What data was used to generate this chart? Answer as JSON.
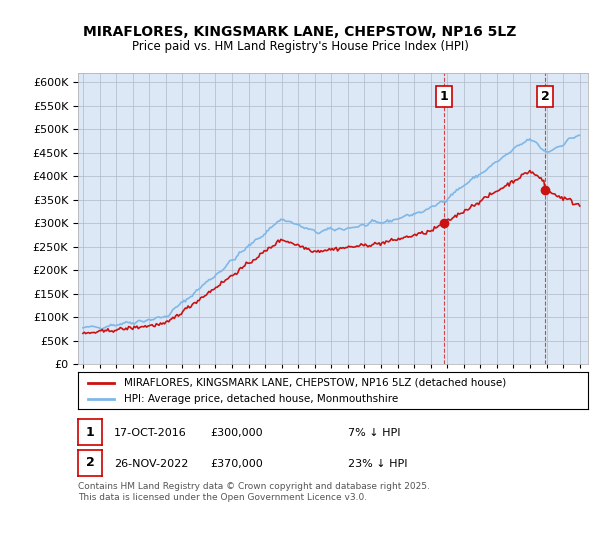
{
  "title": "MIRAFLORES, KINGSMARK LANE, CHEPSTOW, NP16 5LZ",
  "subtitle": "Price paid vs. HM Land Registry's House Price Index (HPI)",
  "legend_line1": "MIRAFLORES, KINGSMARK LANE, CHEPSTOW, NP16 5LZ (detached house)",
  "legend_line2": "HPI: Average price, detached house, Monmouthshire",
  "sale1_label": "1",
  "sale1_date": "17-OCT-2016",
  "sale1_price": "£300,000",
  "sale1_hpi": "7% ↓ HPI",
  "sale2_label": "2",
  "sale2_date": "26-NOV-2022",
  "sale2_price": "£370,000",
  "sale2_hpi": "23% ↓ HPI",
  "footer": "Contains HM Land Registry data © Crown copyright and database right 2025.\nThis data is licensed under the Open Government Licence v3.0.",
  "ylim": [
    0,
    620000
  ],
  "yticks": [
    0,
    50000,
    100000,
    150000,
    200000,
    250000,
    300000,
    350000,
    400000,
    450000,
    500000,
    550000,
    600000
  ],
  "background_color": "#e8f0f8",
  "plot_bg": "#dce8f5",
  "red_color": "#cc1111",
  "blue_color": "#7fb8e8",
  "marker_color_red": "#cc1111",
  "marker_color_blue": "#7fb8e8",
  "vline_color": "#cc0000",
  "sale1_year": 2016.8,
  "sale2_year": 2022.9,
  "sale1_value_red": 300000,
  "sale1_value_blue": 322000,
  "sale2_value_red": 370000,
  "sale2_value_blue": 478000
}
